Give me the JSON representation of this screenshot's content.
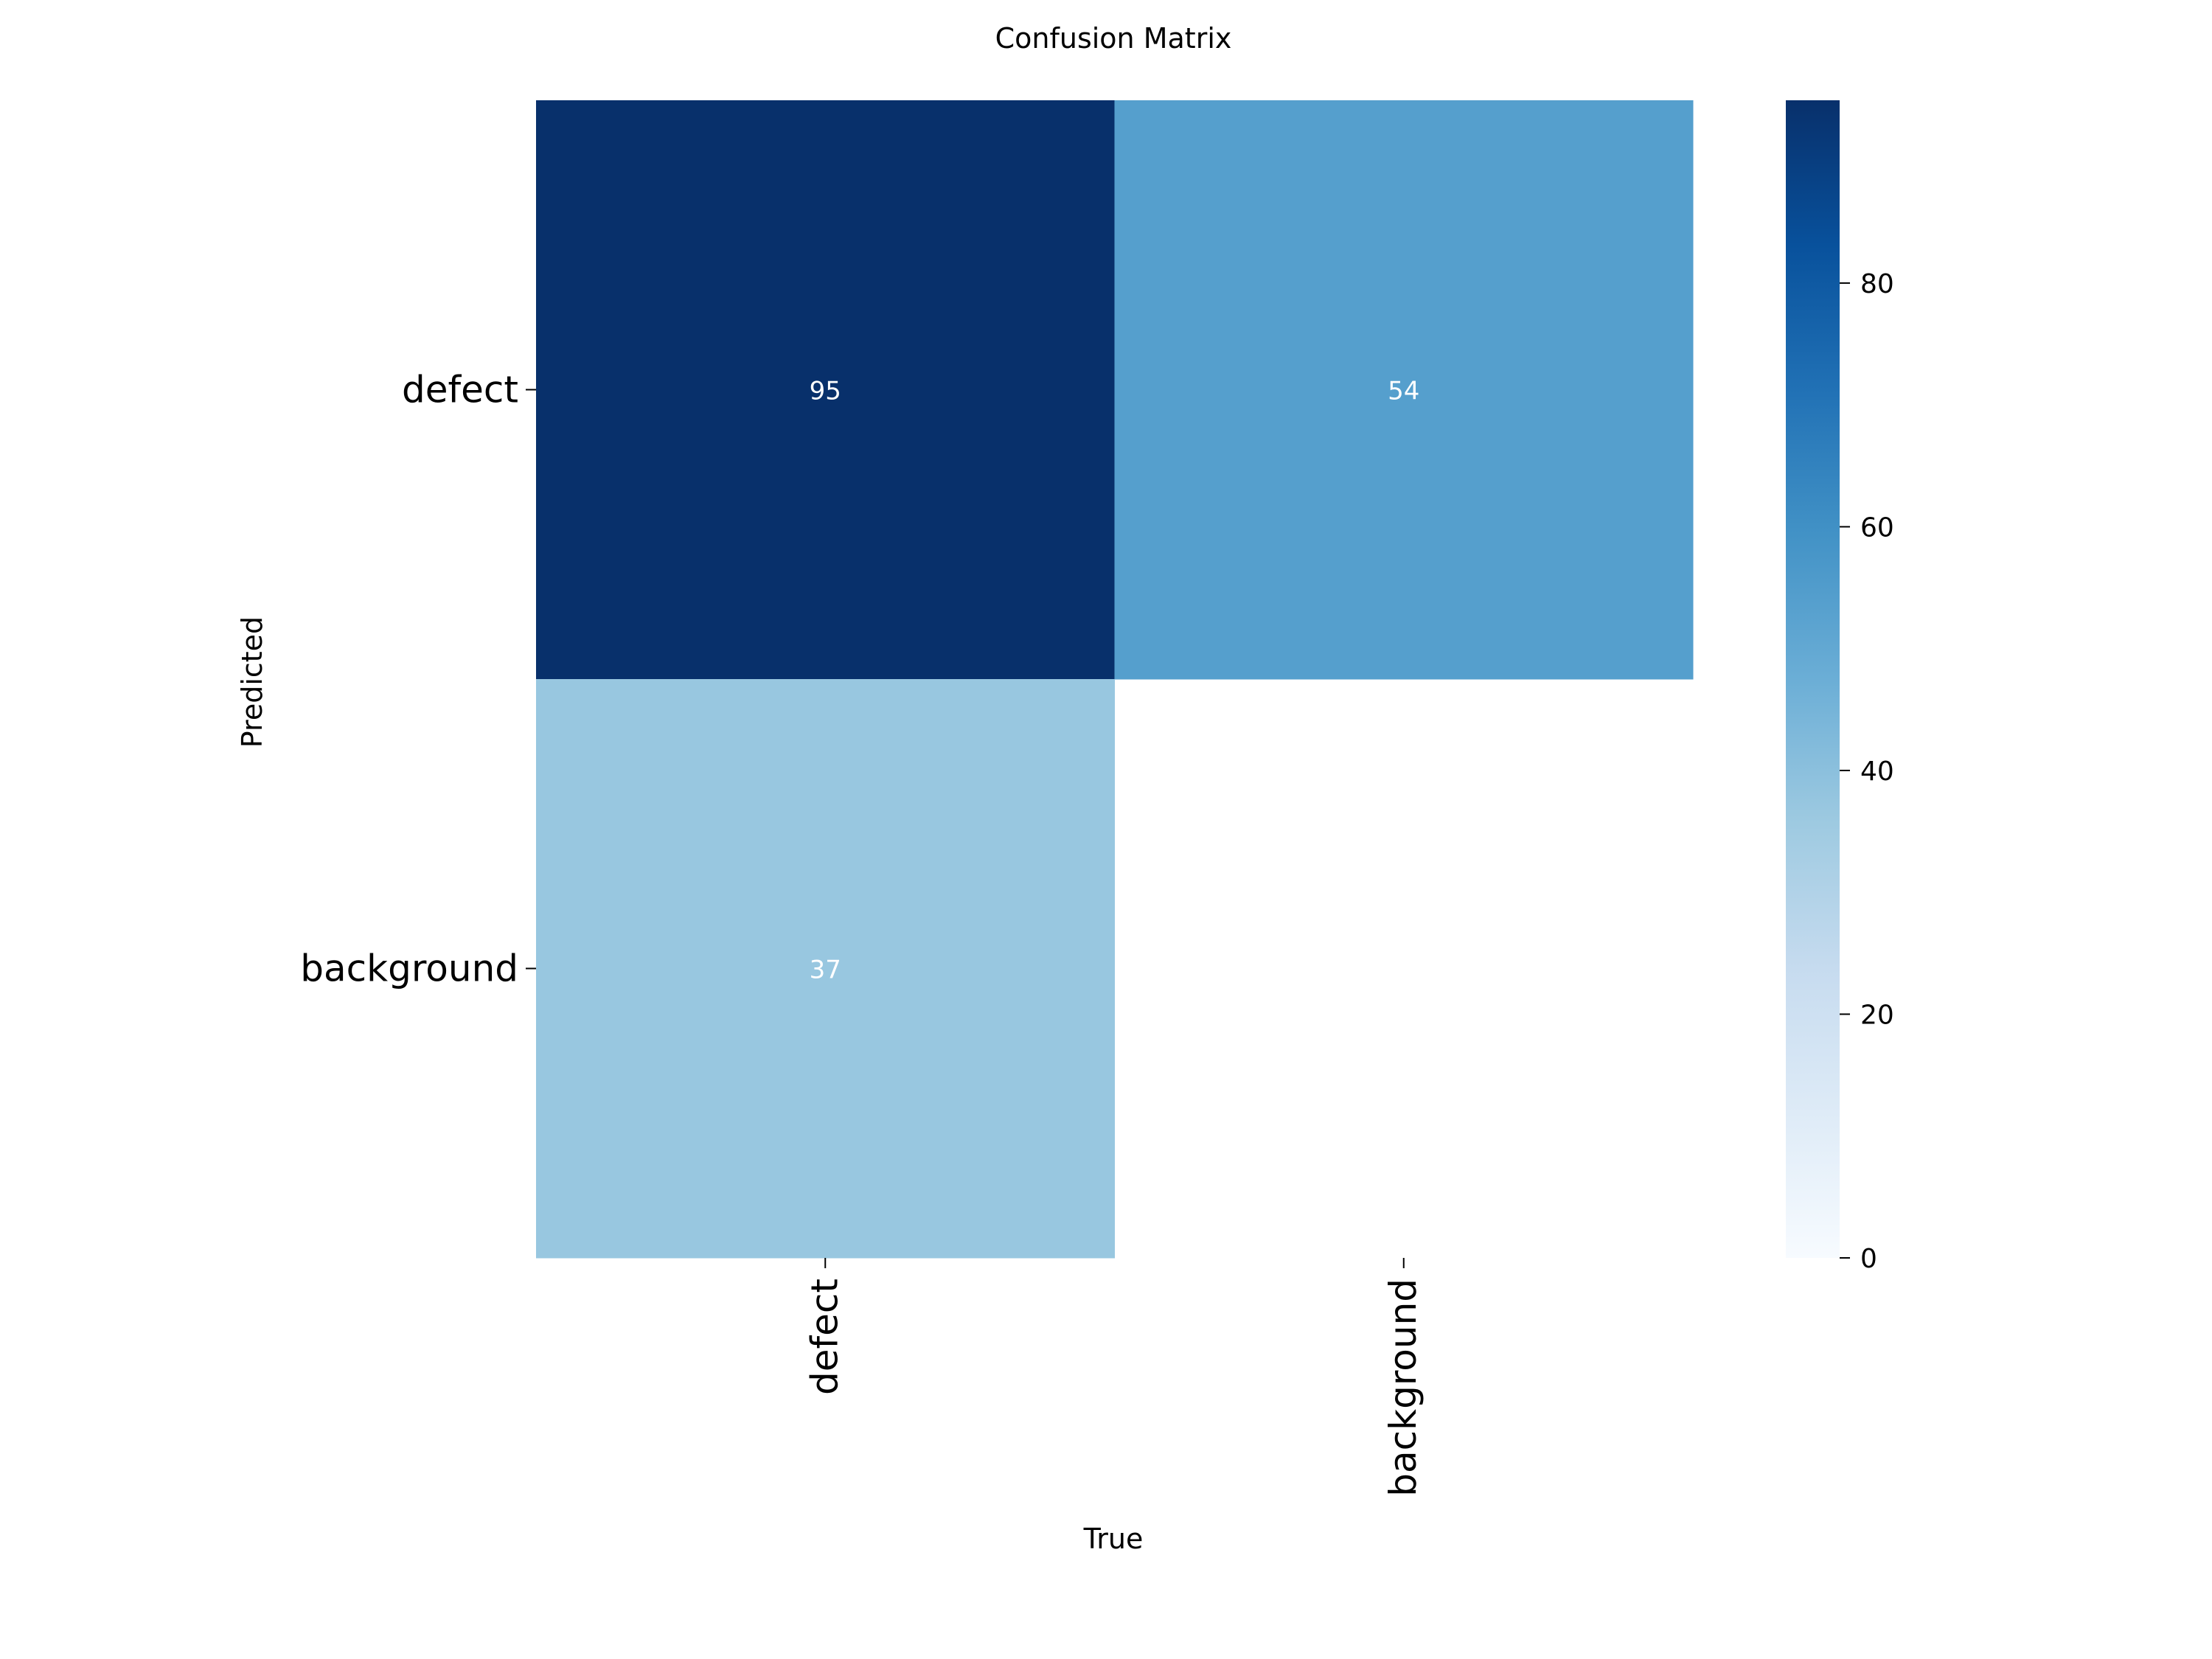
{
  "chart_data": {
    "type": "heatmap",
    "title": "Confusion Matrix",
    "xlabel": "True",
    "ylabel": "Predicted",
    "x_categories": [
      "defect",
      "background"
    ],
    "y_categories": [
      "defect",
      "background"
    ],
    "values": [
      [
        95,
        54
      ],
      [
        37,
        null
      ]
    ],
    "colorbar": {
      "range": [
        0,
        95
      ],
      "ticks": [
        0,
        20,
        40,
        60,
        80
      ]
    },
    "colormap": "Blues",
    "annotation_color": "#ffffff"
  }
}
